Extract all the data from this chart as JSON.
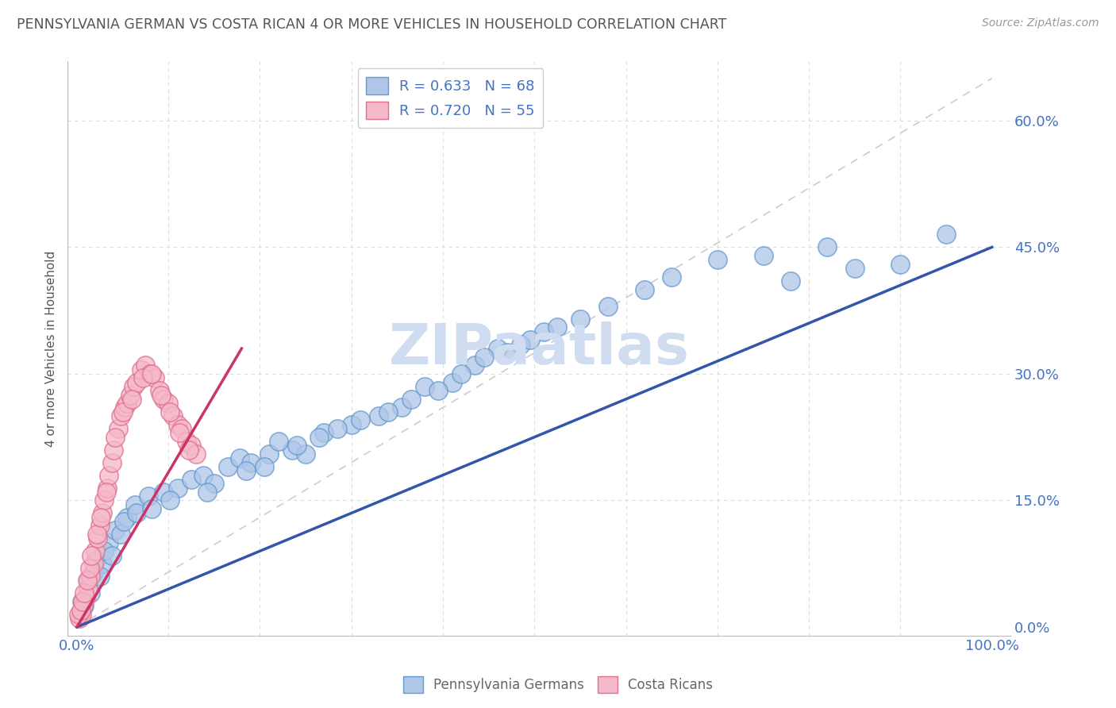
{
  "title": "PENNSYLVANIA GERMAN VS COSTA RICAN 4 OR MORE VEHICLES IN HOUSEHOLD CORRELATION CHART",
  "source": "Source: ZipAtlas.com",
  "ylabel": "4 or more Vehicles in Household",
  "xlim": [
    0,
    100
  ],
  "ylim": [
    0,
    65
  ],
  "ytick_values": [
    0,
    15,
    30,
    45,
    60
  ],
  "ytick_labels": [
    "0.0%",
    "15.0%",
    "30.0%",
    "45.0%",
    "60.0%"
  ],
  "xtick_values": [
    0,
    100
  ],
  "xtick_labels": [
    "0.0%",
    "100.0%"
  ],
  "legend1_R": "0.633",
  "legend1_N": "68",
  "legend2_R": "0.720",
  "legend2_N": "55",
  "blue_scatter_color": "#aec6e8",
  "blue_scatter_edge": "#6699cc",
  "pink_scatter_color": "#f5b8c8",
  "pink_scatter_edge": "#e07090",
  "blue_line_color": "#3355aa",
  "pink_line_color": "#cc3366",
  "diag_color": "#cccccc",
  "grid_color": "#d5dce8",
  "title_color": "#555555",
  "axis_tick_color": "#4472c4",
  "ylabel_color": "#555555",
  "source_color": "#999999",
  "watermark_color": "#d0ddf0",
  "watermark_text": "ZIPaatlas",
  "legend_box_color": "#4472c4",
  "blue_x": [
    1.2,
    0.5,
    2.1,
    1.8,
    3.5,
    2.8,
    4.2,
    3.0,
    5.5,
    4.8,
    6.3,
    5.1,
    7.8,
    6.5,
    8.2,
    9.5,
    11.0,
    10.2,
    12.5,
    13.8,
    15.0,
    14.2,
    16.5,
    17.8,
    19.0,
    18.5,
    21.0,
    20.5,
    23.5,
    22.0,
    25.0,
    24.0,
    27.0,
    26.5,
    30.0,
    28.5,
    33.0,
    31.0,
    35.5,
    34.0,
    38.0,
    36.5,
    41.0,
    39.5,
    43.5,
    42.0,
    46.0,
    44.5,
    48.5,
    47.0,
    51.0,
    49.5,
    55.0,
    52.5,
    58.0,
    62.0,
    65.0,
    70.0,
    75.0,
    78.0,
    82.0,
    85.0,
    90.0,
    95.0,
    0.8,
    1.5,
    2.5,
    3.8
  ],
  "blue_y": [
    5.5,
    3.0,
    8.0,
    6.5,
    10.0,
    7.5,
    11.5,
    9.0,
    13.0,
    11.0,
    14.5,
    12.5,
    15.5,
    13.5,
    14.0,
    16.0,
    16.5,
    15.0,
    17.5,
    18.0,
    17.0,
    16.0,
    19.0,
    20.0,
    19.5,
    18.5,
    20.5,
    19.0,
    21.0,
    22.0,
    20.5,
    21.5,
    23.0,
    22.5,
    24.0,
    23.5,
    25.0,
    24.5,
    26.0,
    25.5,
    28.5,
    27.0,
    29.0,
    28.0,
    31.0,
    30.0,
    33.0,
    32.0,
    33.5,
    32.5,
    35.0,
    34.0,
    36.5,
    35.5,
    38.0,
    40.0,
    41.5,
    43.5,
    44.0,
    41.0,
    45.0,
    42.5,
    43.0,
    46.5,
    2.5,
    4.0,
    6.0,
    8.5
  ],
  "pink_x": [
    0.3,
    0.5,
    0.7,
    1.0,
    1.2,
    1.5,
    1.8,
    2.0,
    2.3,
    2.5,
    2.8,
    3.0,
    3.3,
    3.5,
    3.8,
    4.0,
    4.5,
    4.8,
    5.2,
    5.5,
    5.8,
    6.2,
    6.5,
    7.0,
    7.5,
    8.0,
    8.5,
    9.0,
    9.5,
    10.0,
    10.5,
    11.0,
    11.5,
    12.0,
    12.5,
    13.0,
    0.2,
    0.4,
    0.6,
    0.8,
    1.1,
    1.4,
    1.6,
    2.2,
    2.6,
    3.2,
    4.2,
    5.0,
    6.0,
    7.2,
    8.2,
    9.2,
    10.2,
    11.2,
    12.2
  ],
  "pink_y": [
    1.0,
    1.5,
    2.5,
    3.5,
    4.5,
    6.0,
    7.5,
    9.0,
    10.5,
    12.0,
    13.5,
    15.0,
    16.5,
    18.0,
    19.5,
    21.0,
    23.5,
    25.0,
    26.0,
    26.5,
    27.5,
    28.5,
    29.0,
    30.5,
    31.0,
    30.0,
    29.5,
    28.0,
    27.0,
    26.5,
    25.0,
    24.0,
    23.5,
    22.0,
    21.5,
    20.5,
    1.5,
    2.0,
    3.0,
    4.0,
    5.5,
    7.0,
    8.5,
    11.0,
    13.0,
    16.0,
    22.5,
    25.5,
    27.0,
    29.5,
    30.0,
    27.5,
    25.5,
    23.0,
    21.0
  ],
  "blue_line_x0": 0,
  "blue_line_x1": 100,
  "blue_line_y0": 0,
  "blue_line_y1": 45,
  "pink_line_x0": 0,
  "pink_line_x1": 18,
  "pink_line_y0": 0,
  "pink_line_y1": 33
}
